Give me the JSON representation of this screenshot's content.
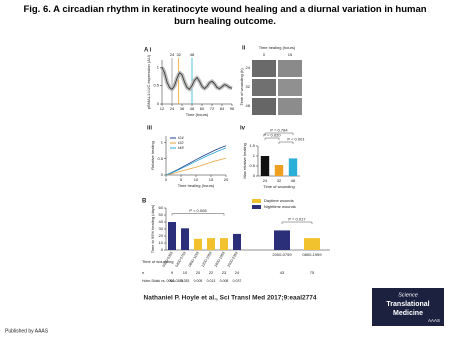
{
  "header": {
    "title": "Fig. 6. A circadian rhythm in keratinocyte wound healing and a diurnal variation in human burn healing outcome."
  },
  "panels": {
    "ii": {
      "panel": "ii",
      "col_title": "Time healing (hours)",
      "cols": [
        0,
        15
      ],
      "rows": [
        24,
        32,
        48
      ],
      "row_title": "Time of wounding (h)"
    }
  },
  "chart_data": [
    {
      "type": "line",
      "panel": "A i",
      "x": [
        12,
        15,
        18,
        21,
        24,
        27,
        30,
        33,
        36,
        39,
        42,
        45,
        48,
        51,
        54,
        57,
        60,
        63,
        66,
        69,
        72,
        75,
        78,
        81,
        84,
        87,
        90,
        93,
        96
      ],
      "series": [
        {
          "color": "#333333",
          "values": [
            1.0,
            0.85,
            0.6,
            0.45,
            0.4,
            0.5,
            0.7,
            0.85,
            0.8,
            0.6,
            0.45,
            0.4,
            0.5,
            0.65,
            0.72,
            0.62,
            0.48,
            0.42,
            0.48,
            0.58,
            0.62,
            0.55,
            0.45,
            0.42,
            0.47,
            0.53,
            0.5,
            0.45,
            0.43
          ]
        }
      ],
      "xlim": [
        12,
        96
      ],
      "xticks": [
        12,
        24,
        36,
        48,
        60,
        72,
        84,
        96
      ],
      "ylim": [
        0,
        1.2
      ],
      "yticks": [
        0,
        0.5,
        1
      ],
      "xlabel": "Time (hours)",
      "ylabel": "pBMAL1:LUC expression (AU)",
      "markers": [
        {
          "value": 24,
          "color": "#9a9a9a"
        },
        {
          "value": 32,
          "color": "#f0a020"
        },
        {
          "value": 48,
          "color": "#2ab0d8"
        }
      ]
    },
    {
      "type": "line",
      "panel": "iii",
      "x": [
        0,
        2,
        4,
        6,
        8,
        10,
        12,
        14,
        16,
        18,
        20
      ],
      "series": [
        {
          "name": "t24",
          "color": "#1f3c88",
          "values": [
            0,
            0.08,
            0.17,
            0.27,
            0.37,
            0.47,
            0.57,
            0.66,
            0.75,
            0.83,
            0.9
          ]
        },
        {
          "name": "t32",
          "color": "#e8a33a",
          "values": [
            0,
            0.04,
            0.09,
            0.14,
            0.19,
            0.24,
            0.3,
            0.36,
            0.42,
            0.47,
            0.52
          ]
        },
        {
          "name": "t48",
          "color": "#29a8d8",
          "values": [
            0,
            0.07,
            0.15,
            0.24,
            0.33,
            0.42,
            0.51,
            0.6,
            0.68,
            0.76,
            0.83
          ]
        }
      ],
      "xlim": [
        0,
        20
      ],
      "xticks": [
        0,
        5,
        10,
        15,
        20
      ],
      "ylim": [
        0,
        1.2
      ],
      "yticks": [
        0,
        0.5,
        1
      ],
      "xlabel": "Time healing (hours)",
      "ylabel": "Relative healing"
    },
    {
      "type": "bar",
      "panel": "iv",
      "categories": [
        "24",
        "32",
        "48"
      ],
      "values": [
        1.0,
        0.55,
        0.88
      ],
      "colors": [
        "#111111",
        "#f0a020",
        "#2ab0d8"
      ],
      "ylim": [
        0,
        1.5
      ],
      "yticks": [
        0,
        0.5,
        1,
        1.5
      ],
      "xlabel": "Time of wounding",
      "ylabel": "Max relative healing",
      "annotations": [
        "P = 0.784",
        "P = 0.020",
        "P < 0.001"
      ]
    },
    {
      "type": "bar",
      "panel": "B",
      "categories": [
        "0000-0359",
        "0400-0759",
        "0800-1159",
        "1200-1559",
        "1600-1959",
        "2000-2359",
        "2000-0759",
        "0800-1959"
      ],
      "values": [
        40,
        31,
        16,
        17,
        17,
        23,
        28,
        17
      ],
      "colors": [
        "#2b2f7a",
        "#2b2f7a",
        "#f2c12e",
        "#f2c12e",
        "#f2c12e",
        "#2b2f7a",
        "#2b2f7a",
        "#f2c12e"
      ],
      "ylim": [
        0,
        60
      ],
      "yticks": [
        0,
        10,
        20,
        30,
        40,
        50,
        60
      ],
      "ylabel": "Time to 95% healing (days)",
      "legend": [
        {
          "name": "Daytime wounds",
          "color": "#f2c12e"
        },
        {
          "name": "Nighttime wounds",
          "color": "#2b2f7a"
        }
      ],
      "annotations": [
        "P = 0.008",
        "P = 0.017"
      ],
      "table": {
        "row_labels": [
          "Time of wounding",
          "n",
          "Holm-Sidak vs. 0000-0359"
        ],
        "n": [
          9,
          10,
          20,
          22,
          23,
          24,
          43,
          75
        ],
        "holm_sidak": [
          "NA",
          0.283,
          0.005,
          0.013,
          0.008,
          0.037,
          null,
          null
        ]
      }
    }
  ],
  "citation": "Nathaniel P. Hoyle et al., Sci Transl Med 2017;9:eaal2774",
  "logo": {
    "line1": "Science",
    "line2": "Translational",
    "line3": "Medicine",
    "publisher": "AAAS"
  },
  "footer": "Published by AAAS"
}
